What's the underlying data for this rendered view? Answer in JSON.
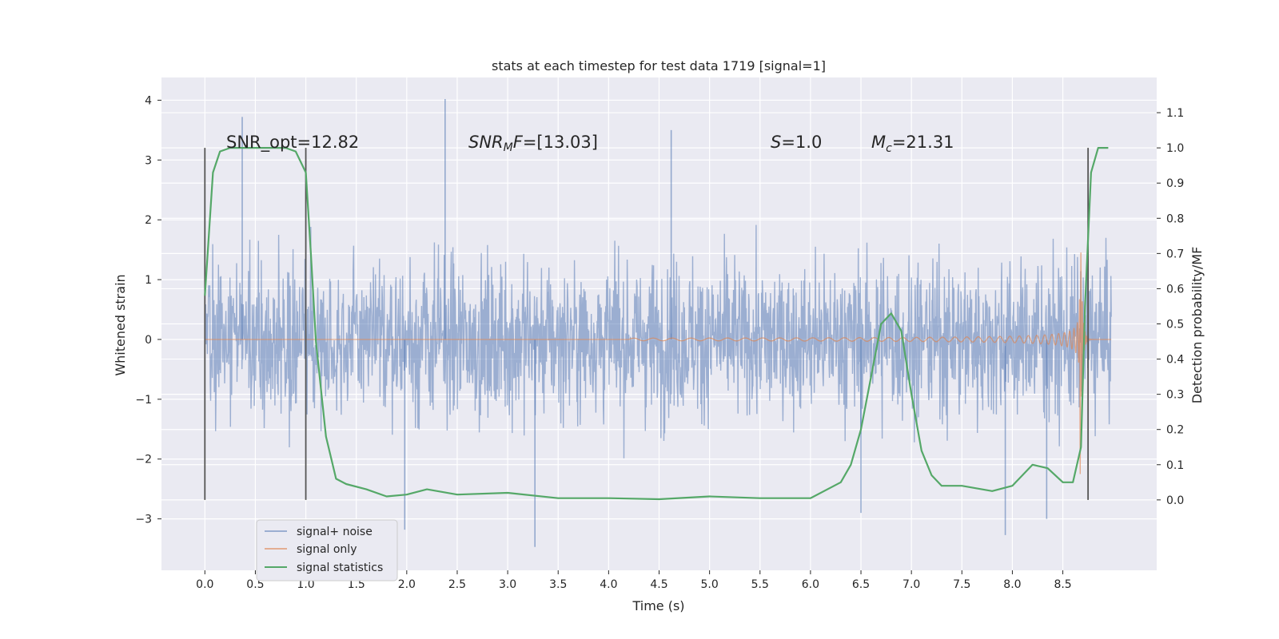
{
  "chart_data": {
    "type": "line",
    "title": "stats at each timestep for test data 1719 [signal=1]",
    "xlabel": "Time (s)",
    "ylabel": "Whitened strain",
    "ylabel_right": "Detection probability/MF",
    "xlim": [
      -0.43,
      9.43
    ],
    "ylim": [
      -3.86,
      4.38
    ],
    "ylim_right": [
      -0.2,
      1.2
    ],
    "xticks": [
      "0.0",
      "0.5",
      "1.0",
      "1.5",
      "2.0",
      "2.5",
      "3.0",
      "3.5",
      "4.0",
      "4.5",
      "5.0",
      "5.5",
      "6.0",
      "6.5",
      "7.0",
      "7.5",
      "8.0",
      "8.5"
    ],
    "yticks_left": [
      "4",
      "3",
      "2",
      "1",
      "0",
      "−1",
      "−2",
      "−3"
    ],
    "yticks_right": [
      "1.1",
      "1.0",
      "0.9",
      "0.8",
      "0.7",
      "0.6",
      "0.5",
      "0.4",
      "0.3",
      "0.2",
      "0.1",
      "0.0"
    ],
    "colors": {
      "background": "#eaeaf2",
      "grid": "#ffffff",
      "noise": "#4c72b0",
      "signal": "#dd8452",
      "stats": "#55a868",
      "vline": "#555555"
    },
    "annotations": {
      "snr_opt": "SNR_opt=12.82",
      "snr_mf": "=[13.03]",
      "s_val": "=1.0",
      "mc_val": "=21.31"
    },
    "vlines": [
      0.0,
      1.0,
      8.75
    ],
    "signal_only": {
      "start": 4.2,
      "merger": 8.67,
      "peak_amplitude": 2.6,
      "description": "chirp"
    },
    "noise_envelope": {
      "x_range": [
        0.0,
        8.98
      ],
      "typical_high": 2.0,
      "typical_low": -2.0,
      "spikes": [
        {
          "x": 0.37,
          "y": 3.72
        },
        {
          "x": 2.38,
          "y": 4.02
        },
        {
          "x": 4.62,
          "y": 3.5
        },
        {
          "x": 3.27,
          "y": -3.47
        },
        {
          "x": 1.98,
          "y": -3.18
        },
        {
          "x": 7.93,
          "y": -3.27
        },
        {
          "x": 6.5,
          "y": -2.9
        },
        {
          "x": 8.34,
          "y": -3.0
        }
      ]
    },
    "series": [
      {
        "name": "signal statistics",
        "axis": "right",
        "x": [
          0.0,
          0.08,
          0.15,
          0.25,
          0.4,
          0.6,
          0.8,
          0.9,
          1.0,
          1.05,
          1.1,
          1.2,
          1.3,
          1.4,
          1.6,
          1.8,
          2.0,
          2.2,
          2.5,
          3.0,
          3.5,
          4.0,
          4.5,
          5.0,
          5.5,
          6.0,
          6.3,
          6.4,
          6.5,
          6.6,
          6.7,
          6.8,
          6.9,
          7.0,
          7.1,
          7.2,
          7.3,
          7.5,
          7.8,
          8.0,
          8.2,
          8.35,
          8.5,
          8.6,
          8.68,
          8.72,
          8.78,
          8.85,
          8.95
        ],
        "values": [
          0.58,
          0.93,
          0.99,
          1.0,
          1.0,
          1.0,
          1.0,
          0.99,
          0.93,
          0.7,
          0.45,
          0.18,
          0.06,
          0.045,
          0.03,
          0.01,
          0.015,
          0.03,
          0.015,
          0.02,
          0.005,
          0.005,
          0.002,
          0.01,
          0.005,
          0.005,
          0.05,
          0.1,
          0.2,
          0.35,
          0.5,
          0.53,
          0.48,
          0.3,
          0.14,
          0.07,
          0.04,
          0.04,
          0.025,
          0.04,
          0.1,
          0.09,
          0.05,
          0.05,
          0.15,
          0.55,
          0.93,
          1.0,
          1.0
        ]
      },
      {
        "name": "signal+ noise",
        "axis": "left"
      },
      {
        "name": "signal only",
        "axis": "left"
      }
    ],
    "legend": {
      "position": "lower-left",
      "entries": [
        "signal+ noise",
        "signal only",
        "signal statistics"
      ]
    }
  }
}
